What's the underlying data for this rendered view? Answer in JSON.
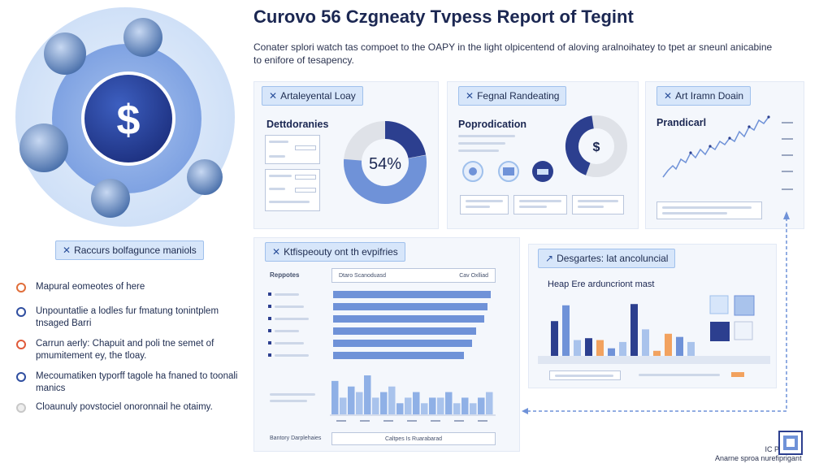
{
  "header": {
    "title": "Curovo 56 Czgneaty Tvpess Report of Tegint",
    "subtitle": "Conater splori watch tas compoet to the OAPY in the light olpicentend of aloving aralnoihatey to tpet ar sneunl anicabine to enifore of tesapency."
  },
  "hero": {
    "currency_symbol": "$",
    "chip_label": "Raccurs bolfagunce maniols"
  },
  "bullets": [
    {
      "text": "Mapural eomeotes of here",
      "icon": "circle-orange-icon"
    },
    {
      "text": "Unpountatlie a lodles fur fmatung tonintplem tnsaged Barri",
      "icon": "circle-blue-icon"
    },
    {
      "text": "Carrun aerly: Chapuit and poli tne semet of pmumitement ey, the tloay.",
      "icon": "circle-red-icon"
    },
    {
      "text": "Mecoumatiken typorff tagole ha fnaned to toonali manics",
      "icon": "circle-blue-icon"
    },
    {
      "text": "Cloaunuly povstociel onoronnail he otaimy.",
      "icon": "circle-gray-icon"
    }
  ],
  "cards": {
    "analytical": {
      "chip": "Artaleyental Loay",
      "label": "Dettdoranies",
      "donut_value": "54%",
      "donut_fraction": 0.54
    },
    "fiscal": {
      "chip": "Fegnal Randeating",
      "label": "Poprodication",
      "donut_symbol": "$",
      "donut_fraction": 0.42
    },
    "trend": {
      "chip": "Art Iramn Doain",
      "label": "Prandicarl"
    },
    "expenditure": {
      "chip": "Ktfispeouty ont th evpifries",
      "label": "Reppotes",
      "search_left": "Dtaro Scanoduasd",
      "search_right": "Cav Oxlliad",
      "bar_fractions": [
        0.99,
        0.97,
        0.95,
        0.9,
        0.87,
        0.82
      ],
      "hist_values": [
        6,
        3,
        5,
        4,
        7,
        3,
        4,
        5,
        2,
        3,
        4,
        2,
        3,
        3,
        4,
        2,
        3,
        2,
        3,
        4
      ],
      "bottom_button": "Caltpes Is Ruarabarad",
      "bottom_label": "Bantory Darplehaies"
    },
    "descriptive": {
      "chip": "Desgartes: lat ancoluncial",
      "label": "Heap Ere arduncriont mast",
      "bar_values": [
        55,
        80,
        25,
        28,
        25,
        12,
        22,
        82,
        42,
        8,
        35,
        30,
        22
      ]
    }
  },
  "footer": {
    "line1": "IC Proaualt",
    "line2": "Anarne sproa nurefiprigant"
  },
  "colors": {
    "navy": "#2c3f8f",
    "blue": "#6f92d8",
    "light_blue": "#a9c3ec",
    "orange": "#f2a25f",
    "gray": "#d9dde6"
  }
}
